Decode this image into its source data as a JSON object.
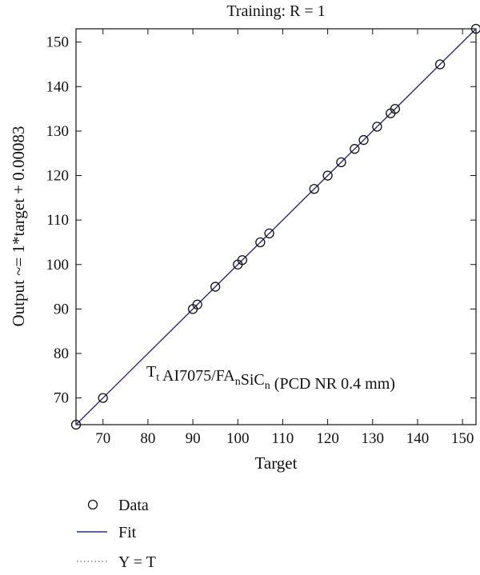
{
  "chart_data": {
    "type": "scatter",
    "title": "Training: R = 1",
    "xlabel": "Target",
    "ylabel": "Output ~= 1*target + 0.00083",
    "xlim": [
      64,
      153
    ],
    "ylim": [
      64,
      153
    ],
    "xticks": [
      70,
      80,
      90,
      100,
      110,
      120,
      130,
      140,
      150
    ],
    "yticks": [
      70,
      80,
      90,
      100,
      110,
      120,
      130,
      140,
      150
    ],
    "grid": false,
    "legend_position": "bottom-left, below plot",
    "annotation": {
      "parts": [
        {
          "text": "T",
          "sub": false
        },
        {
          "text": "t",
          "sub": true
        },
        {
          "text": " AI7075/FA",
          "sub": false
        },
        {
          "text": "n",
          "sub": true
        },
        {
          "text": "SiC",
          "sub": false
        },
        {
          "text": "n",
          "sub": true
        },
        {
          "text": " (PCD NR 0.4 mm)",
          "sub": false
        }
      ]
    },
    "fit": {
      "slope": 1,
      "intercept": 0.00083,
      "color": "#2b2b88"
    },
    "series": [
      {
        "name": "Data",
        "marker": "open-circle",
        "color": "#111111",
        "points": [
          [
            64,
            64
          ],
          [
            70,
            70
          ],
          [
            90,
            90
          ],
          [
            91,
            91
          ],
          [
            95,
            95
          ],
          [
            100,
            100
          ],
          [
            101,
            101
          ],
          [
            105,
            105
          ],
          [
            107,
            107
          ],
          [
            117,
            117
          ],
          [
            120,
            120
          ],
          [
            123,
            123
          ],
          [
            126,
            126
          ],
          [
            128,
            128
          ],
          [
            131,
            131
          ],
          [
            134,
            134
          ],
          [
            135,
            135
          ],
          [
            145,
            145
          ],
          [
            153,
            153
          ]
        ]
      }
    ],
    "legend": [
      {
        "label": "Data",
        "style": "circle"
      },
      {
        "label": "Fit",
        "style": "solid-line"
      },
      {
        "label": "Y = T",
        "style": "dotted-line"
      }
    ]
  }
}
